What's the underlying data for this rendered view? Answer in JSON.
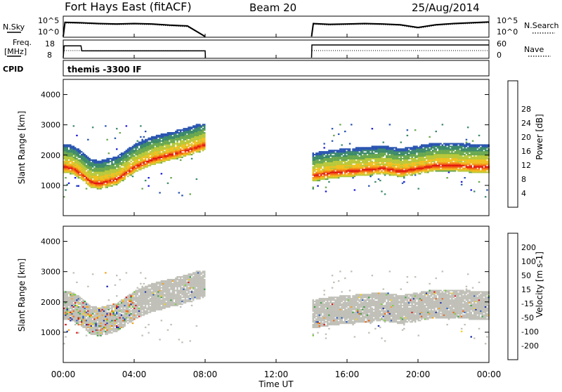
{
  "header": {
    "title": "Fort Hays East (fitACF)",
    "beam": "Beam 20",
    "date": "25/Aug/2014"
  },
  "noise_panel": {
    "left_label": "N.Sky",
    "right_label": "N.Search",
    "left_ticks": [
      "10^5",
      "10^0"
    ],
    "right_ticks": [
      "10^5",
      "10^0"
    ]
  },
  "freq_panel": {
    "left_label_1": "Freq.",
    "left_label_2": "[MHz]",
    "right_label": "Nave",
    "left_ticks": [
      "18",
      "8"
    ],
    "right_ticks": [
      "60",
      "0"
    ]
  },
  "cpid_panel": {
    "left_label": "CPID",
    "program": "themis -3300 IF"
  },
  "x_axis": {
    "label": "Time UT",
    "ticks": [
      "00:00",
      "04:00",
      "08:00",
      "12:00",
      "16:00",
      "20:00",
      "00:00"
    ]
  },
  "power_colorbar": {
    "label": "Power [dB]",
    "ticks": [
      "4",
      "8",
      "12",
      "16",
      "20",
      "24",
      "28"
    ],
    "colors": [
      "#1a1adc",
      "#2a55b0",
      "#3d8a6a",
      "#6aa84f",
      "#b8c83a",
      "#f0c020",
      "#f59a1a",
      "#f05a14",
      "#e01010"
    ]
  },
  "velocity_colorbar": {
    "label": "Velocity [m s-1]",
    "ticks": [
      "200",
      "100",
      "50",
      "15",
      "-15",
      "-50",
      "-100",
      "-200"
    ],
    "colors": [
      "#1a2aa8",
      "#2a5cc0",
      "#3aa040",
      "#7ccc3a",
      "#c0c0b8",
      "#f5d020",
      "#f5a020",
      "#f06010",
      "#e01010"
    ]
  },
  "chart_data": [
    {
      "type": "line",
      "title": "",
      "ylabel": "N.Sky",
      "x_unit": "hours UT",
      "xlim": [
        0,
        24
      ],
      "ylim_log10": [
        0,
        5
      ],
      "segments": [
        {
          "x": [
            0,
            0.1,
            1,
            2,
            3,
            4,
            5,
            6,
            7,
            8
          ],
          "y_log10": [
            0,
            3.6,
            3.5,
            3.3,
            3.2,
            3.3,
            3.2,
            2.9,
            2.7,
            0
          ]
        },
        {
          "x": [
            14,
            14.1,
            15,
            16,
            17,
            18,
            19,
            20,
            21,
            22,
            23,
            24
          ],
          "y_log10": [
            0,
            3.3,
            3.1,
            3.2,
            3.3,
            3.2,
            3.0,
            2.3,
            3.0,
            3.3,
            3.5,
            3.7
          ]
        }
      ]
    },
    {
      "type": "line",
      "title": "",
      "ylabel": "Freq. [MHz]",
      "xlim": [
        0,
        24
      ],
      "ylim": [
        8,
        18
      ],
      "segments": [
        {
          "x": [
            0,
            0.05,
            1,
            1.05,
            8,
            8.02
          ],
          "y": [
            8,
            15,
            15,
            12,
            12,
            8
          ]
        },
        {
          "x": [
            14,
            14.02,
            24
          ],
          "y": [
            8,
            15.5,
            15.5
          ]
        }
      ]
    },
    {
      "type": "heatmap",
      "title": "",
      "ylabel": "Slant Range [km]",
      "xlabel": "Time UT",
      "zlabel": "Power [dB]",
      "xlim": [
        0,
        24
      ],
      "ylim": [
        0,
        4500
      ],
      "yticks": [
        1000,
        2000,
        3000,
        4000
      ],
      "band_center_km": {
        "x": [
          0,
          0.5,
          1,
          1.5,
          2,
          3,
          4,
          5,
          6,
          7,
          8,
          14,
          15,
          16,
          17,
          18,
          19,
          20,
          21,
          22,
          23,
          24
        ],
        "y": [
          1650,
          1600,
          1400,
          1150,
          1100,
          1250,
          1650,
          1900,
          2050,
          2200,
          2400,
          1350,
          1450,
          1500,
          1550,
          1600,
          1500,
          1600,
          1700,
          1700,
          1650,
          1650
        ]
      },
      "peak_power_db": 30
    },
    {
      "type": "heatmap",
      "title": "",
      "ylabel": "Slant Range [km]",
      "xlabel": "Time UT",
      "zlabel": "Velocity [m s-1]",
      "xlim": [
        0,
        24
      ],
      "ylim": [
        0,
        4500
      ],
      "yticks": [
        1000,
        2000,
        3000,
        4000
      ],
      "note_values": "dominant velocity near 0 m/s (ground scatter grey)"
    }
  ]
}
